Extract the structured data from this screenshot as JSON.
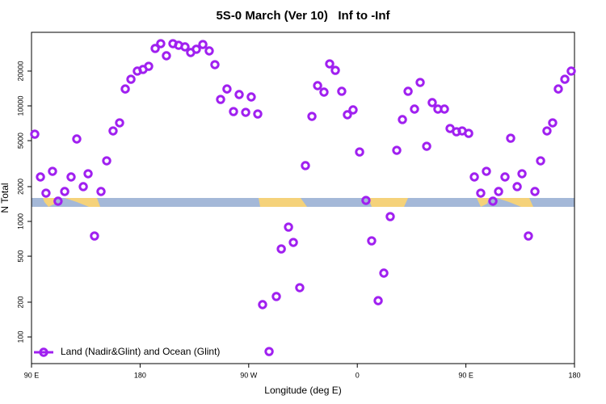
{
  "chart_data": {
    "type": "scatter",
    "title": "5S-0 March (Ver 10)   Inf to -Inf",
    "xlabel": "Longitude (deg E)",
    "ylabel": "N Total",
    "xlim": [
      90,
      540
    ],
    "xticks": [
      {
        "value": 90,
        "label": "90 E"
      },
      180,
      {
        "value": 270,
        "label": "90 W"
      },
      {
        "value": 360,
        "label": "0"
      },
      {
        "value": 450,
        "label": "90 E"
      },
      {
        "value": 540,
        "label": "180"
      }
    ],
    "ylim": [
      58.8,
      43300
    ],
    "log_y": true,
    "yticks": [
      100,
      200,
      500,
      1000,
      2000,
      5000,
      10000,
      20000
    ],
    "grid": false,
    "legend": "bottom-left",
    "series": [
      {
        "name": "Land (Nadir&Glint) and Ocean (Glint)",
        "color": "#a020f0",
        "x": [
          92.7,
          97.4,
          102,
          107.4,
          112,
          117.5,
          122.8,
          127.5,
          132.9,
          136.9,
          142.2,
          147.6,
          152.3,
          157.6,
          163,
          167.7,
          172.4,
          177.7,
          182.4,
          187.1,
          192.5,
          197.1,
          201.8,
          207.2,
          211.9,
          217.2,
          221.9,
          226.6,
          232,
          237.3,
          242,
          246.7,
          252,
          257.4,
          262.1,
          267.5,
          272.1,
          277.5,
          281.5,
          286.9,
          292.9,
          297,
          303,
          307,
          312.3,
          317,
          322.4,
          327.1,
          332.4,
          337.1,
          341.8,
          347.1,
          351.8,
          356.5,
          361.9,
          367.2,
          371.9,
          377.3,
          382,
          387.3,
          392.7,
          397.4,
          402.1,
          407.4,
          412.1,
          417.5,
          422.1,
          426.8,
          432.2,
          436.9,
          442.2,
          446.9,
          452.3,
          457,
          462.3,
          467,
          472.4,
          477.1,
          482.4,
          487.1,
          492.5,
          496.5,
          501.8,
          507.2,
          511.9,
          517.2,
          521.9,
          526.6,
          532,
          537.3
        ],
        "values": [
          5690,
          2425,
          1757,
          2714,
          1496,
          1815,
          2425,
          5170,
          2000,
          2586,
          748,
          1815,
          3345,
          6070,
          7130,
          14000,
          17000,
          20000,
          20650,
          22000,
          31400,
          34550,
          27150,
          34550,
          33450,
          32400,
          28950,
          30900,
          33970,
          29900,
          22730,
          11370,
          14000,
          8930,
          12530,
          8790,
          11940,
          8510,
          190.5,
          74.8,
          224,
          578,
          893,
          658,
          267,
          3040,
          8110,
          14960,
          13150,
          23100,
          20300,
          13370,
          8380,
          9230,
          3990,
          1520,
          679,
          206,
          357,
          1101,
          4125,
          7610,
          13370,
          9380,
          15950,
          4470,
          10670,
          9380,
          9380,
          6370,
          5970,
          6070,
          5780,
          2425,
          1757,
          2714,
          1496,
          1815,
          2425,
          5250,
          2000,
          2586,
          748,
          1815,
          3345,
          6070,
          7130,
          14000,
          17000,
          20000
        ]
      }
    ]
  }
}
